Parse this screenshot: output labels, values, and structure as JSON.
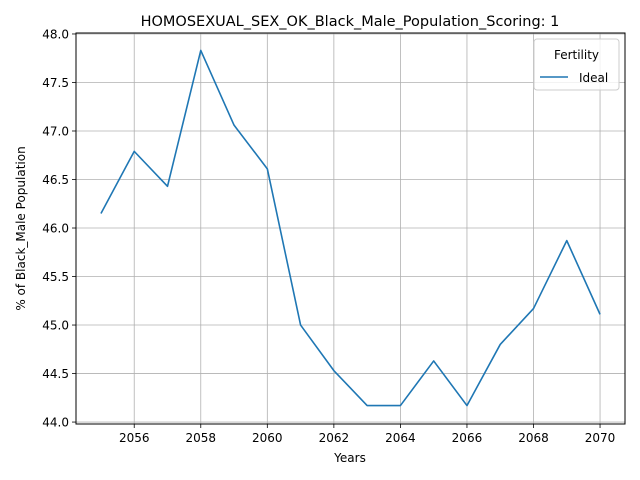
{
  "chart_data": {
    "type": "line",
    "title": "HOMOSEXUAL_SEX_OK_Black_Male_Population_Scoring: 1",
    "xlabel": "Years",
    "ylabel": "% of Black_Male Population",
    "xlim": [
      2054.25,
      2070.75
    ],
    "ylim": [
      43.98,
      48.01
    ],
    "xticks": [
      2056,
      2058,
      2060,
      2062,
      2064,
      2066,
      2068,
      2070
    ],
    "yticks": [
      44.0,
      44.5,
      45.0,
      45.5,
      46.0,
      46.5,
      47.0,
      47.5,
      48.0
    ],
    "ytick_labels": [
      "44.0",
      "44.5",
      "45.0",
      "45.5",
      "46.0",
      "46.5",
      "47.0",
      "47.5",
      "48.0"
    ],
    "grid": true,
    "legend": {
      "title": "Fertility",
      "placement": "top-right"
    },
    "series": [
      {
        "name": "Ideal",
        "color": "#1f77b4",
        "x": [
          2055,
          2056,
          2057,
          2058,
          2059,
          2060,
          2061,
          2062,
          2063,
          2064,
          2065,
          2066,
          2067,
          2068,
          2069,
          2070
        ],
        "y": [
          46.15,
          46.79,
          46.43,
          47.83,
          47.06,
          46.61,
          45.0,
          44.53,
          44.17,
          44.17,
          44.63,
          44.17,
          44.8,
          45.17,
          45.87,
          45.11
        ]
      }
    ]
  }
}
